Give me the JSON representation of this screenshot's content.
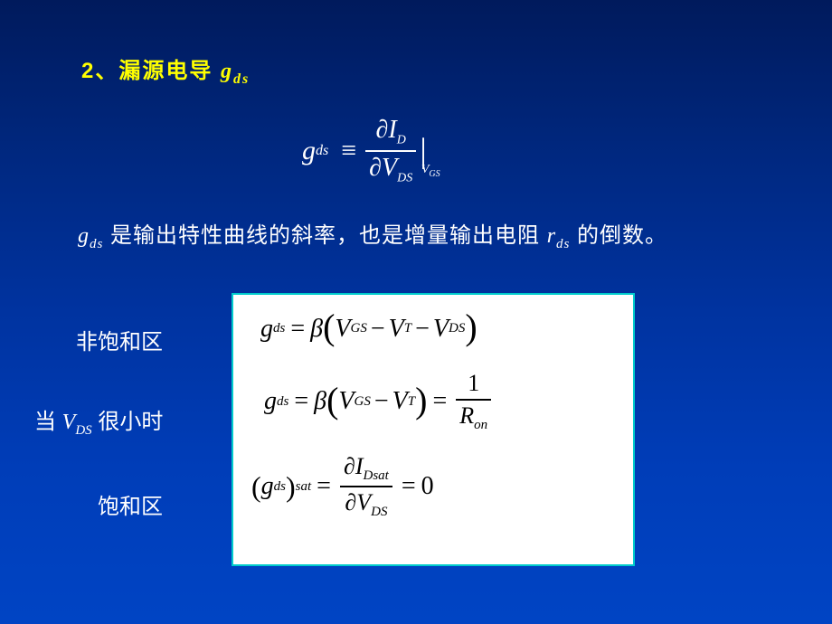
{
  "title": {
    "prefix": "2、漏源电导 ",
    "var": "g",
    "sub": "ds"
  },
  "formula_main": {
    "lhs_var": "g",
    "lhs_sub": "ds",
    "equiv": "≡",
    "num_partial": "∂",
    "num_var": "I",
    "num_sub": "D",
    "den_partial": "∂",
    "den_var": "V",
    "den_sub": "DS",
    "cond_var": "V",
    "cond_sub": "GS"
  },
  "description": {
    "g_var": "g",
    "g_sub": "ds",
    "text1": " 是输出特性曲线的斜率，也是增量输出电阻 ",
    "r_var": "r",
    "r_sub": "ds",
    "text2": " 的倒数。"
  },
  "labels": {
    "nonsat": "非饱和区",
    "small_vds_prefix": "当 ",
    "small_vds_var": "V",
    "small_vds_sub": "DS",
    "small_vds_suffix": " 很小时",
    "sat": "饱和区"
  },
  "box": {
    "row1": {
      "g": "g",
      "g_sub": "ds",
      "eq": "=",
      "beta": "β",
      "v1": "V",
      "v1_sub": "GS",
      "vt": "V",
      "vt_sub": "T",
      "v2": "V",
      "v2_sub": "DS"
    },
    "row2": {
      "g": "g",
      "g_sub": "ds",
      "eq": "=",
      "beta": "β",
      "v1": "V",
      "v1_sub": "GS",
      "vt": "V",
      "vt_sub": "T",
      "num": "1",
      "r": "R",
      "r_sub": "on"
    },
    "row3": {
      "g": "g",
      "g_sub": "ds",
      "sat_sub": "sat",
      "eq": "=",
      "num_partial": "∂",
      "num_var": "I",
      "num_sub": "Dsat",
      "den_partial": "∂",
      "den_var": "V",
      "den_sub": "DS",
      "zero": "0"
    }
  },
  "colors": {
    "title": "#ffff00",
    "text": "#ffffff",
    "box_bg": "#ffffff",
    "box_border": "#00cccc",
    "box_text": "#000000"
  }
}
